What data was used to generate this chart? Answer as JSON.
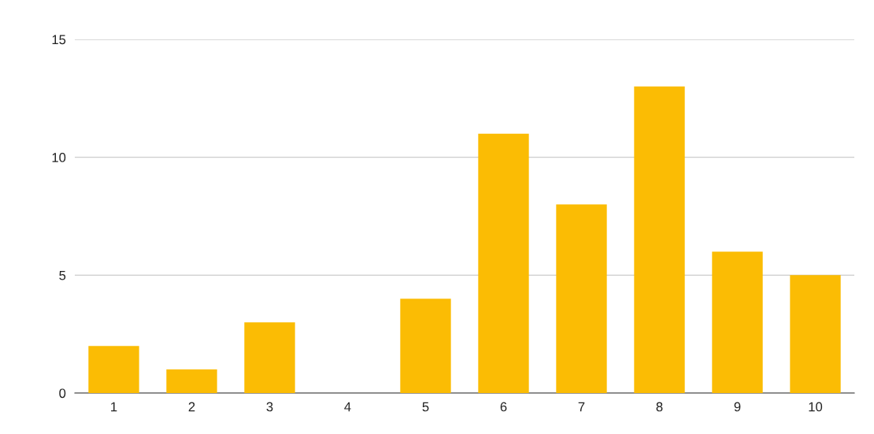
{
  "chart_data": {
    "type": "bar",
    "categories": [
      "1",
      "2",
      "3",
      "4",
      "5",
      "6",
      "7",
      "8",
      "9",
      "10"
    ],
    "values": [
      2,
      1,
      3,
      0,
      4,
      11,
      8,
      13,
      6,
      5
    ],
    "color": "#fbbc04",
    "ylim": [
      0,
      15
    ],
    "yticks": [
      0,
      5,
      10,
      15
    ],
    "grid": "y",
    "legend": false
  }
}
